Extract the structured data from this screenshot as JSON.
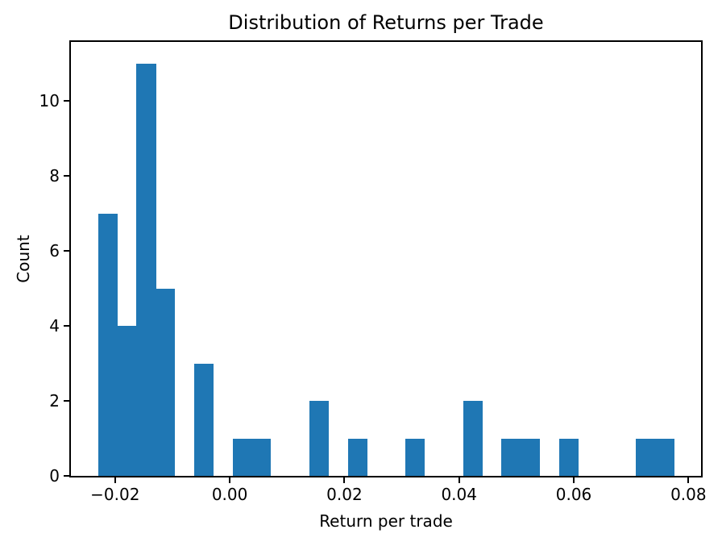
{
  "chart_data": {
    "type": "bar",
    "subtype": "histogram",
    "title": "Distribution of Returns per Trade",
    "xlabel": "Return per trade",
    "ylabel": "Count",
    "bar_color": "#1f77b4",
    "axis_color": "#000000",
    "background_color": "#ffffff",
    "grid": false,
    "legend_position": "none",
    "bins": 30,
    "bin_start": -0.02295,
    "bin_width": 0.00335,
    "counts": [
      7,
      4,
      11,
      5,
      0,
      3,
      0,
      1,
      1,
      0,
      0,
      2,
      0,
      1,
      0,
      0,
      1,
      0,
      0,
      2,
      0,
      1,
      1,
      0,
      1,
      0,
      0,
      0,
      1,
      1
    ],
    "xlim": [
      -0.0277,
      0.0822
    ],
    "ylim": [
      0,
      11.57
    ],
    "xticks": [
      {
        "value": -0.02,
        "label": "−0.02"
      },
      {
        "value": 0.0,
        "label": "0.00"
      },
      {
        "value": 0.02,
        "label": "0.02"
      },
      {
        "value": 0.04,
        "label": "0.04"
      },
      {
        "value": 0.06,
        "label": "0.06"
      },
      {
        "value": 0.08,
        "label": "0.08"
      }
    ],
    "yticks": [
      {
        "value": 0,
        "label": "0"
      },
      {
        "value": 2,
        "label": "2"
      },
      {
        "value": 4,
        "label": "4"
      },
      {
        "value": 6,
        "label": "6"
      },
      {
        "value": 8,
        "label": "8"
      },
      {
        "value": 10,
        "label": "10"
      }
    ]
  }
}
